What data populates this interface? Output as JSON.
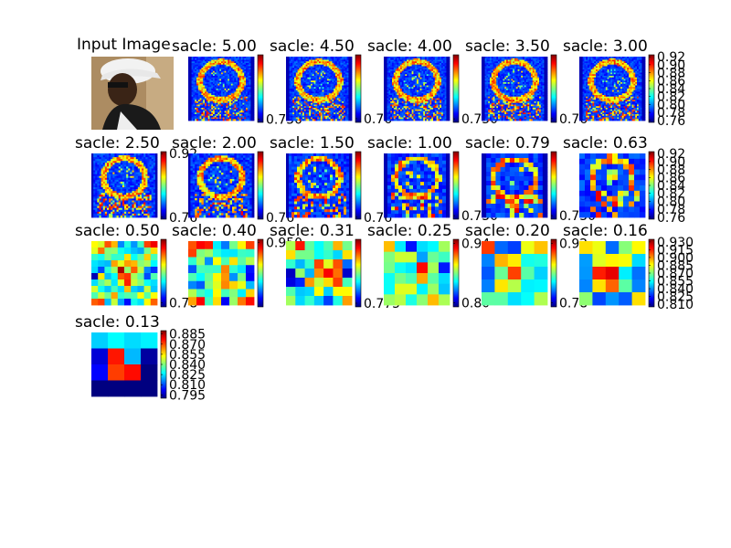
{
  "figure": {
    "input_title": "Input Image"
  },
  "chart_data": [
    {
      "type": "heatmap",
      "title": "sacle: 5.00",
      "colormap": "jet",
      "ticks": [
        "0.750"
      ],
      "range": [
        0.74,
        0.96
      ],
      "pattern": "silhouette",
      "grid": 40
    },
    {
      "type": "heatmap",
      "title": "sacle: 4.50",
      "colormap": "jet",
      "ticks": [
        "0.76"
      ],
      "range": [
        0.75,
        0.93
      ],
      "pattern": "silhouette",
      "grid": 40
    },
    {
      "type": "heatmap",
      "title": "sacle: 4.00",
      "colormap": "jet",
      "ticks": [
        "0.750"
      ],
      "range": [
        0.74,
        0.93
      ],
      "pattern": "silhouette",
      "grid": 40
    },
    {
      "type": "heatmap",
      "title": "sacle: 3.50",
      "colormap": "jet",
      "ticks": [
        "0.76"
      ],
      "range": [
        0.75,
        0.93
      ],
      "pattern": "silhouette",
      "grid": 40
    },
    {
      "type": "heatmap",
      "title": "sacle: 3.00",
      "colormap": "jet",
      "ticks": [
        "0.92",
        "0.90",
        "0.88",
        "0.86",
        "0.84",
        "0.82",
        "0.80",
        "0.78",
        "0.76"
      ],
      "range": [
        0.755,
        0.925
      ],
      "pattern": "silhouette",
      "grid": 40
    },
    {
      "type": "heatmap",
      "title": "sacle: 2.50",
      "colormap": "jet",
      "ticks": [
        "0.92",
        "0.76"
      ],
      "range": [
        0.755,
        0.925
      ],
      "pattern": "silhouette",
      "grid": 34
    },
    {
      "type": "heatmap",
      "title": "sacle: 2.00",
      "colormap": "jet",
      "ticks": [
        "0.76"
      ],
      "range": [
        0.755,
        0.925
      ],
      "pattern": "silhouette",
      "grid": 30
    },
    {
      "type": "heatmap",
      "title": "sacle: 1.50",
      "colormap": "jet",
      "ticks": [
        "0.76"
      ],
      "range": [
        0.755,
        0.925
      ],
      "pattern": "silhouette",
      "grid": 24
    },
    {
      "type": "heatmap",
      "title": "sacle: 1.00",
      "colormap": "jet",
      "ticks": [
        "0.750"
      ],
      "range": [
        0.74,
        0.93
      ],
      "pattern": "silhouette",
      "grid": 18
    },
    {
      "type": "heatmap",
      "title": "sacle: 0.79",
      "colormap": "jet",
      "ticks": [
        "0.750"
      ],
      "range": [
        0.74,
        0.93
      ],
      "pattern": "silhouette",
      "grid": 14
    },
    {
      "type": "heatmap",
      "title": "sacle: 0.63",
      "colormap": "jet",
      "ticks": [
        "0.92",
        "0.90",
        "0.88",
        "0.86",
        "0.84",
        "0.82",
        "0.80",
        "0.78",
        "0.76"
      ],
      "range": [
        0.755,
        0.925
      ],
      "pattern": "silhouette",
      "grid": 12
    },
    {
      "type": "heatmap",
      "title": "sacle: 0.50",
      "colormap": "jet",
      "ticks": [
        "0.78"
      ],
      "range": [
        0.77,
        0.93
      ],
      "pattern": "blob",
      "grid": 10
    },
    {
      "type": "heatmap",
      "title": "sacle: 0.40",
      "colormap": "jet",
      "ticks": [
        "0.950"
      ],
      "range": [
        0.76,
        0.96
      ],
      "pattern": "blob",
      "grid": 8
    },
    {
      "type": "heatmap",
      "title": "sacle: 0.31",
      "colormap": "jet",
      "ticks": [
        "0.775"
      ],
      "range": [
        0.765,
        0.95
      ],
      "pattern": "blob",
      "grid": 7
    },
    {
      "type": "heatmap",
      "title": "sacle: 0.25",
      "colormap": "jet",
      "ticks": [
        "0.94",
        "0.80"
      ],
      "range": [
        0.79,
        0.95
      ],
      "pattern": "blob",
      "grid": 6
    },
    {
      "type": "heatmap",
      "title": "sacle: 0.20",
      "colormap": "jet",
      "ticks": [
        "0.92",
        "0.78"
      ],
      "range": [
        0.77,
        0.93
      ],
      "pattern": "blob",
      "grid": 5
    },
    {
      "type": "heatmap",
      "title": "sacle: 0.16",
      "colormap": "jet",
      "ticks": [
        "0.930",
        "0.810"
      ],
      "range": [
        0.8,
        0.94
      ],
      "pattern": "blob",
      "grid": 5
    },
    {
      "type": "heatmap",
      "title": "sacle: 0.16",
      "colormap": "jet",
      "ticks": [
        "0.930",
        "0.915",
        "0.900",
        "0.885",
        "0.870",
        "0.855",
        "0.840",
        "0.825",
        "0.810"
      ],
      "range": [
        0.805,
        0.935
      ],
      "pattern": "blob",
      "grid": 5
    },
    {
      "type": "heatmap",
      "title": "sacle: 0.13",
      "colormap": "jet",
      "ticks": [
        "0.885",
        "0.870",
        "0.855",
        "0.840",
        "0.825",
        "0.810",
        "0.795"
      ],
      "range": [
        0.79,
        0.89
      ],
      "pattern": "cross",
      "grid": 4
    }
  ]
}
